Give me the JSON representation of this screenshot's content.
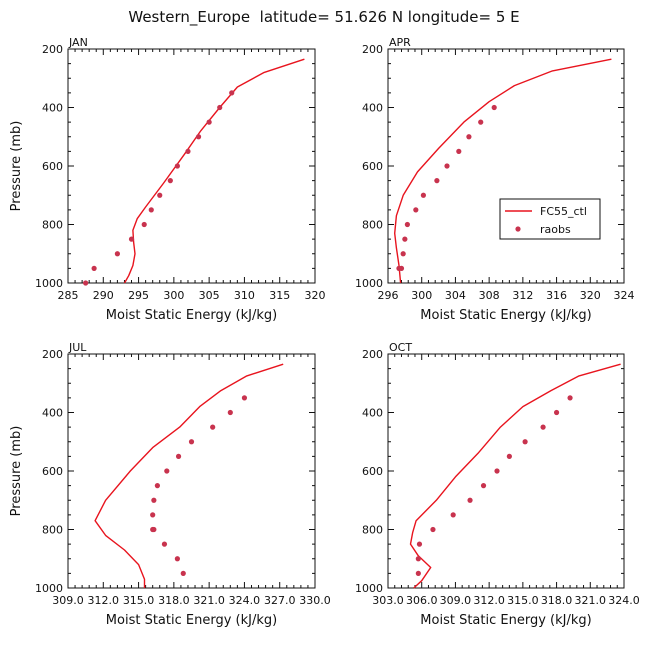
{
  "page": {
    "title": "Western_Europe  latitude= 51.626 N longitude= 5 E"
  },
  "colors": {
    "model_line": "#e8141e",
    "raob_marker": "#c8334e",
    "axis": "#111111"
  },
  "legend": {
    "items": [
      {
        "label": "FC55_ctl",
        "symbol": "line"
      },
      {
        "label": "raobs",
        "symbol": "dot"
      }
    ]
  },
  "chart_data": [
    {
      "type": "line",
      "panel": "JAN",
      "title": "JAN",
      "xlabel": "Moist Static Energy (kJ/kg)",
      "ylabel": "Pressure (mb)",
      "xlim": [
        285,
        320
      ],
      "ylim": [
        1000,
        200
      ],
      "xticks": [
        285,
        290,
        295,
        300,
        305,
        310,
        315,
        320
      ],
      "xtick_labels": [
        "285",
        "290",
        "295",
        "300",
        "305",
        "310",
        "315",
        "320"
      ],
      "yticks": [
        200,
        400,
        600,
        800,
        1000
      ],
      "ytick_labels": [
        "200",
        "400",
        "600",
        "800",
        "1000"
      ],
      "series": [
        {
          "name": "FC55_ctl",
          "kind": "line",
          "x": [
            318.5,
            312.8,
            309.0,
            306.5,
            303.8,
            301.5,
            298.5,
            296.0,
            294.8,
            294.2,
            294.3,
            294.5,
            294.2,
            293.6,
            293.0
          ],
          "y": [
            235,
            280,
            330,
            400,
            480,
            560,
            660,
            740,
            780,
            820,
            860,
            900,
            940,
            975,
            1000
          ]
        },
        {
          "name": "raobs",
          "kind": "scatter",
          "x": [
            308.2,
            306.5,
            305.0,
            303.5,
            302.0,
            300.5,
            299.5,
            298.0,
            296.8,
            295.8,
            294.0,
            292.0,
            288.7,
            287.5
          ],
          "y": [
            350,
            400,
            450,
            500,
            550,
            600,
            650,
            700,
            750,
            800,
            850,
            900,
            950,
            1000
          ]
        }
      ]
    },
    {
      "type": "line",
      "panel": "APR",
      "title": "APR",
      "xlabel": "Moist Static Energy (kJ/kg)",
      "ylabel": "",
      "xlim": [
        296,
        324
      ],
      "ylim": [
        1000,
        200
      ],
      "xticks": [
        296,
        300,
        304,
        308,
        312,
        316,
        320,
        324
      ],
      "xtick_labels": [
        "296",
        "300",
        "304",
        "308",
        "312",
        "316",
        "320",
        "324"
      ],
      "yticks": [
        200,
        400,
        600,
        800,
        1000
      ],
      "ytick_labels": [
        "200",
        "400",
        "600",
        "800",
        "1000"
      ],
      "series": [
        {
          "name": "FC55_ctl",
          "kind": "line",
          "x": [
            322.5,
            315.5,
            311.0,
            308.0,
            305.0,
            302.0,
            299.5,
            297.8,
            297.0,
            296.8,
            297.0,
            297.3,
            297.5
          ],
          "y": [
            235,
            275,
            325,
            380,
            450,
            540,
            620,
            700,
            770,
            830,
            880,
            940,
            1000
          ]
        },
        {
          "name": "raobs",
          "kind": "scatter",
          "x": [
            308.6,
            307.0,
            305.6,
            304.4,
            303.0,
            301.8,
            300.2,
            299.3,
            298.3,
            298.0,
            297.8,
            297.6,
            297.3
          ],
          "y": [
            400,
            450,
            500,
            550,
            600,
            650,
            700,
            750,
            800,
            850,
            900,
            950,
            950
          ]
        }
      ]
    },
    {
      "type": "line",
      "panel": "JUL",
      "title": "JUL",
      "xlabel": "Moist Static Energy (kJ/kg)",
      "ylabel": "Pressure (mb)",
      "xlim": [
        309.0,
        330.0
      ],
      "ylim": [
        1000,
        200
      ],
      "xticks": [
        309.0,
        312.0,
        315.0,
        318.0,
        321.0,
        324.0,
        327.0,
        330.0
      ],
      "xtick_labels": [
        "309.0",
        "312.0",
        "315.0",
        "318.0",
        "321.0",
        "324.0",
        "327.0",
        "330.0"
      ],
      "yticks": [
        200,
        400,
        600,
        800,
        1000
      ],
      "ytick_labels": [
        "200",
        "400",
        "600",
        "800",
        "1000"
      ],
      "series": [
        {
          "name": "FC55_ctl",
          "kind": "line",
          "x": [
            327.3,
            324.2,
            322.0,
            320.2,
            318.5,
            316.2,
            314.3,
            312.2,
            311.3,
            312.2,
            313.8,
            315.0,
            315.5,
            315.5
          ],
          "y": [
            235,
            275,
            325,
            380,
            450,
            520,
            600,
            700,
            770,
            820,
            870,
            920,
            970,
            1000
          ]
        },
        {
          "name": "raobs",
          "kind": "scatter",
          "x": [
            324.0,
            322.8,
            321.3,
            319.5,
            318.4,
            317.4,
            316.6,
            316.3,
            316.2,
            316.2,
            316.3,
            317.2,
            318.3,
            318.8
          ],
          "y": [
            350,
            400,
            450,
            500,
            550,
            600,
            650,
            700,
            750,
            800,
            800,
            850,
            900,
            950
          ]
        }
      ]
    },
    {
      "type": "line",
      "panel": "OCT",
      "title": "OCT",
      "xlabel": "Moist Static Energy (kJ/kg)",
      "ylabel": "",
      "xlim": [
        303.0,
        324.0
      ],
      "ylim": [
        1000,
        200
      ],
      "xticks": [
        303.0,
        306.0,
        309.0,
        312.0,
        315.0,
        318.0,
        321.0,
        324.0
      ],
      "xtick_labels": [
        "303.0",
        "306.0",
        "309.0",
        "312.0",
        "315.0",
        "318.0",
        "321.0",
        "324.0"
      ],
      "yticks": [
        200,
        400,
        600,
        800,
        1000
      ],
      "ytick_labels": [
        "200",
        "400",
        "600",
        "800",
        "1000"
      ],
      "series": [
        {
          "name": "FC55_ctl",
          "kind": "line",
          "x": [
            323.7,
            320.0,
            317.5,
            315.0,
            313.0,
            311.0,
            309.0,
            307.3,
            305.5,
            305.2,
            305.0,
            305.7,
            306.8,
            306.0,
            305.3
          ],
          "y": [
            235,
            275,
            325,
            380,
            450,
            540,
            620,
            700,
            770,
            810,
            850,
            890,
            930,
            975,
            1000
          ]
        },
        {
          "name": "raobs",
          "kind": "scatter",
          "x": [
            319.2,
            318.0,
            316.8,
            315.2,
            313.8,
            312.7,
            311.5,
            310.3,
            308.8,
            307.0,
            305.8,
            305.7,
            305.7
          ],
          "y": [
            350,
            400,
            450,
            500,
            550,
            600,
            650,
            700,
            750,
            800,
            850,
            900,
            950
          ]
        }
      ]
    }
  ]
}
